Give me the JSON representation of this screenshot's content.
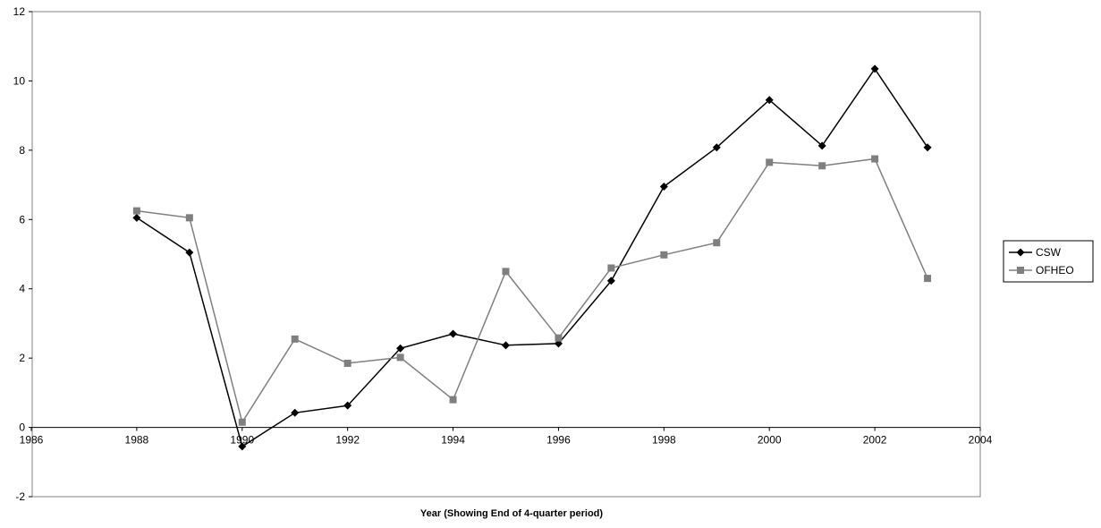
{
  "chart_data": {
    "type": "line",
    "title": "",
    "xlabel": "Year (Showing End of 4-quarter period)",
    "ylabel": "",
    "xlim": [
      1986,
      2004
    ],
    "ylim": [
      -2,
      12
    ],
    "xticks": [
      1986,
      1988,
      1990,
      1992,
      1994,
      1996,
      1998,
      2000,
      2002,
      2004
    ],
    "yticks": [
      -2,
      0,
      2,
      4,
      6,
      8,
      10,
      12
    ],
    "grid": false,
    "legend": "right",
    "series": [
      {
        "name": "CSW",
        "color": "#000000",
        "marker": "diamond",
        "x": [
          1988,
          1989,
          1990,
          1991,
          1992,
          1993,
          1994,
          1995,
          1996,
          1997,
          1998,
          1999,
          2000,
          2001,
          2002,
          2003
        ],
        "y": [
          6.05,
          5.05,
          -0.55,
          0.42,
          0.63,
          2.28,
          2.7,
          2.37,
          2.42,
          4.23,
          6.95,
          8.08,
          9.45,
          8.13,
          10.35,
          8.08
        ]
      },
      {
        "name": "OFHEO",
        "color": "#7f7f7f",
        "marker": "square",
        "x": [
          1988,
          1989,
          1990,
          1991,
          1992,
          1993,
          1994,
          1995,
          1996,
          1997,
          1998,
          1999,
          2000,
          2001,
          2002,
          2003
        ],
        "y": [
          6.25,
          6.05,
          0.15,
          2.55,
          1.85,
          2.02,
          0.8,
          4.5,
          2.58,
          4.6,
          4.98,
          5.33,
          7.65,
          7.55,
          7.75,
          4.3
        ]
      }
    ]
  }
}
